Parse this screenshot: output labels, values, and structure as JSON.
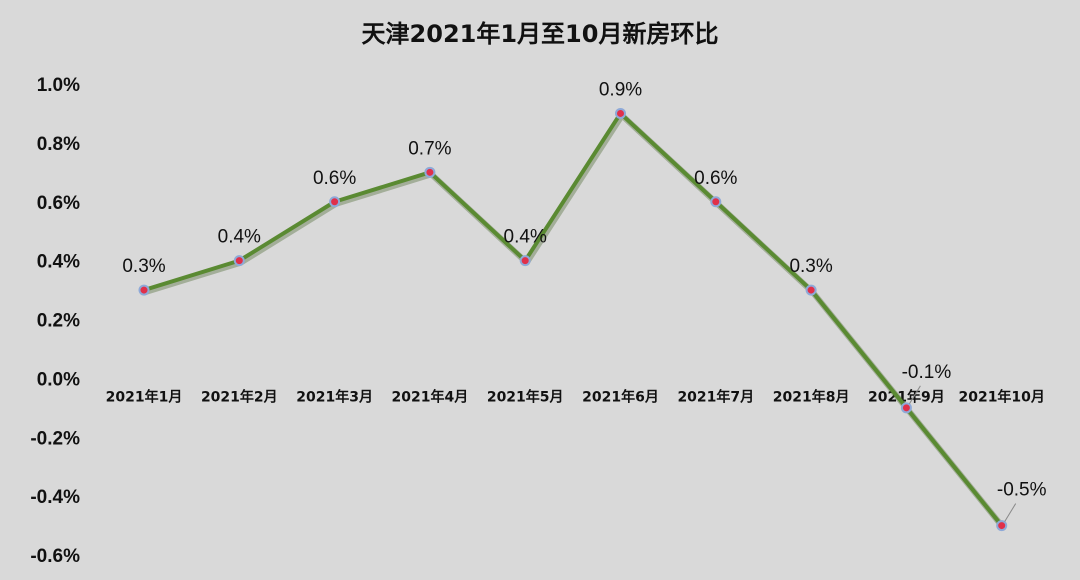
{
  "chart_data": {
    "type": "line",
    "title": "天津2021年1月至10月新房环比",
    "categories": [
      "2021年1月",
      "2021年2月",
      "2021年3月",
      "2021年4月",
      "2021年5月",
      "2021年6月",
      "2021年7月",
      "2021年8月",
      "2021年9月",
      "2021年10月"
    ],
    "values": [
      0.3,
      0.4,
      0.6,
      0.7,
      0.4,
      0.9,
      0.6,
      0.3,
      -0.1,
      -0.5
    ],
    "data_labels": [
      "0.3%",
      "0.4%",
      "0.6%",
      "0.7%",
      "0.4%",
      "0.9%",
      "0.6%",
      "0.3%",
      "-0.1%",
      "-0.5%"
    ],
    "y_ticks": [
      1.0,
      0.8,
      0.6,
      0.4,
      0.2,
      0.0,
      -0.2,
      -0.4,
      -0.6
    ],
    "y_tick_labels": [
      "1.0%",
      "0.8%",
      "0.6%",
      "0.4%",
      "0.2%",
      "0.0%",
      "-0.2%",
      "-0.4%",
      "-0.6%"
    ],
    "ylim": [
      -0.6,
      1.0
    ],
    "y_unit": "%",
    "grid": false,
    "legend": "none",
    "colors": {
      "line": "#5a8a32",
      "marker_fill": "#e0304a",
      "marker_edge": "#8ea9d8",
      "background": "#d9d9d9"
    }
  }
}
